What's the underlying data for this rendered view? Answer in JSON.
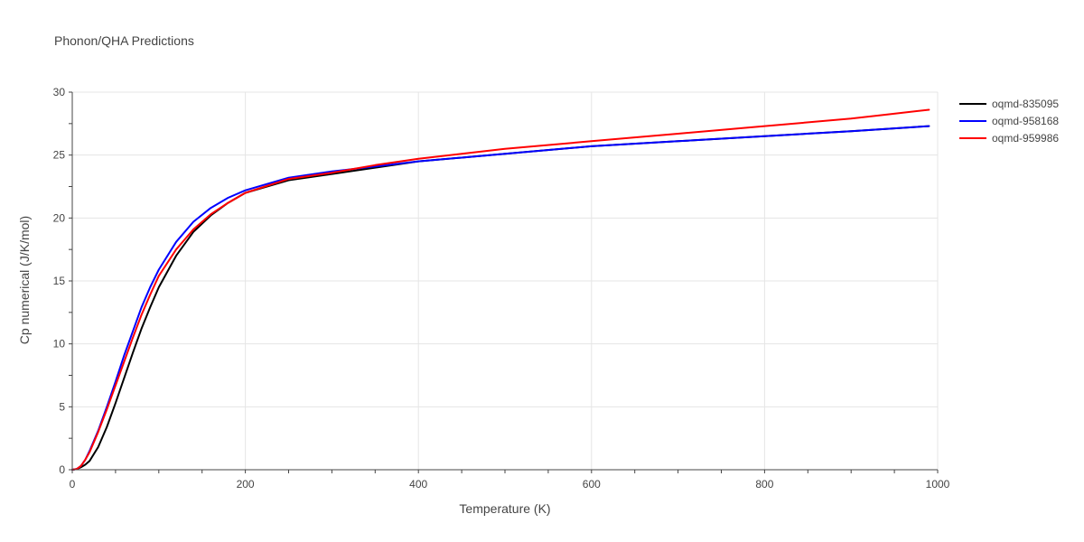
{
  "chart_data": {
    "type": "line",
    "title": "Phonon/QHA Predictions",
    "xlabel": "Temperature (K)",
    "ylabel": "Cp numerical (J/K/mol)",
    "xlim": [
      0,
      1000
    ],
    "ylim": [
      0,
      30
    ],
    "xticks": [
      "0",
      "200",
      "400",
      "600",
      "800",
      "1000"
    ],
    "yticks": [
      "0",
      "5",
      "10",
      "15",
      "20",
      "25",
      "30"
    ],
    "grid": true,
    "legend_position": "top-right",
    "series": [
      {
        "name": "oqmd-835095",
        "color": "#000000",
        "x": [
          0,
          5,
          10,
          15,
          20,
          30,
          40,
          50,
          60,
          70,
          80,
          90,
          100,
          120,
          140,
          160,
          180,
          200,
          250,
          300,
          350,
          400,
          450,
          500,
          600,
          700,
          800,
          900,
          990
        ],
        "y": [
          0,
          0.05,
          0.2,
          0.4,
          0.7,
          1.8,
          3.4,
          5.3,
          7.3,
          9.3,
          11.2,
          12.9,
          14.5,
          17.0,
          18.9,
          20.2,
          21.2,
          22.0,
          23.0,
          23.5,
          24.0,
          24.5,
          24.8,
          25.1,
          25.7,
          26.1,
          26.5,
          26.9,
          27.3
        ]
      },
      {
        "name": "oqmd-958168",
        "color": "#0000ff",
        "x": [
          0,
          5,
          10,
          15,
          20,
          30,
          40,
          50,
          60,
          70,
          80,
          90,
          100,
          120,
          140,
          160,
          180,
          200,
          250,
          300,
          350,
          400,
          450,
          500,
          600,
          700,
          800,
          900,
          990
        ],
        "y": [
          0,
          0.05,
          0.3,
          0.8,
          1.5,
          3.1,
          5.0,
          7.0,
          9.1,
          11.0,
          12.9,
          14.5,
          15.9,
          18.1,
          19.7,
          20.8,
          21.6,
          22.2,
          23.2,
          23.7,
          24.1,
          24.5,
          24.8,
          25.1,
          25.7,
          26.1,
          26.5,
          26.9,
          27.3
        ]
      },
      {
        "name": "oqmd-959986",
        "color": "#ff0000",
        "x": [
          0,
          5,
          10,
          15,
          20,
          30,
          40,
          50,
          60,
          70,
          80,
          90,
          100,
          120,
          140,
          160,
          180,
          200,
          250,
          300,
          350,
          400,
          450,
          500,
          600,
          700,
          800,
          900,
          990
        ],
        "y": [
          0,
          0.05,
          0.3,
          0.8,
          1.4,
          3.0,
          4.8,
          6.7,
          8.6,
          10.5,
          12.3,
          13.9,
          15.4,
          17.5,
          19.1,
          20.3,
          21.2,
          22.0,
          23.1,
          23.6,
          24.2,
          24.7,
          25.1,
          25.5,
          26.1,
          26.7,
          27.3,
          27.9,
          28.6
        ]
      }
    ]
  }
}
